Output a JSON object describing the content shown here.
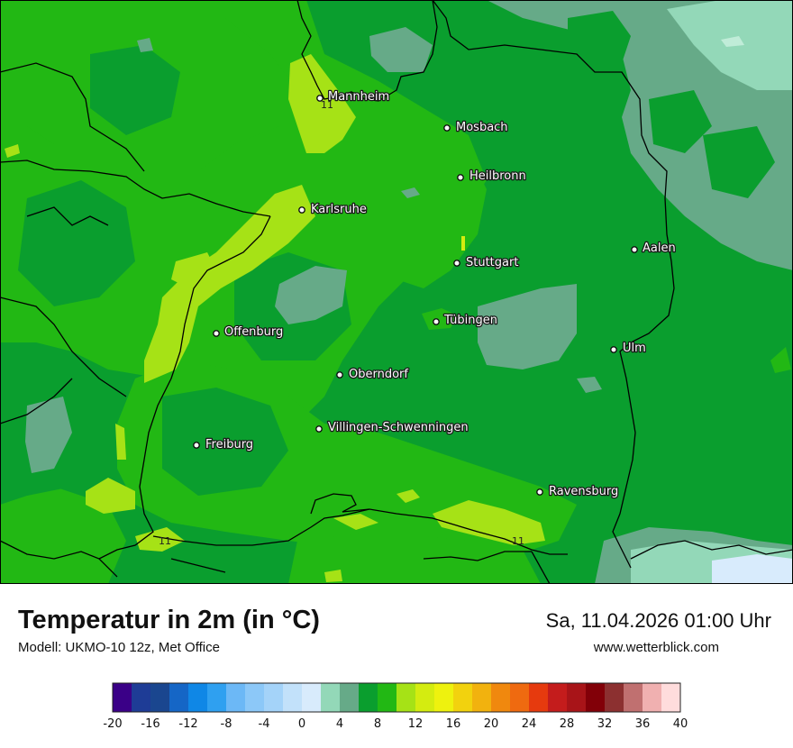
{
  "map": {
    "colors": {
      "c3": "#66aa88",
      "c4": "#93d8b8",
      "c5": "#c0ecd8",
      "c8": "#0a9e2e",
      "c10": "#22b814",
      "c12": "#a6e216",
      "c14": "#d4ec10",
      "border": "#000000"
    },
    "cities": [
      {
        "name": "Mannheim"
      },
      {
        "name": "Mosbach"
      },
      {
        "name": "Heilbronn"
      },
      {
        "name": "Karlsruhe"
      },
      {
        "name": "Aalen"
      },
      {
        "name": "Stuttgart"
      },
      {
        "name": "Tübingen"
      },
      {
        "name": "Offenburg"
      },
      {
        "name": "Ulm"
      },
      {
        "name": "Oberndorf"
      },
      {
        "name": "Villingen-Schwenningen"
      },
      {
        "name": "Freiburg"
      },
      {
        "name": "Ravensburg"
      }
    ],
    "isolines": [
      "11",
      "11",
      "11"
    ]
  },
  "footer": {
    "title": "Temperatur in 2m (in °C)",
    "model": "Modell: UKMO-10 12z, Met Office",
    "datetime": "Sa, 11.04.2026 01:00 Uhr",
    "website": "www.wetterblick.com"
  },
  "legend": {
    "colors": [
      "#3a0087",
      "#1e3c96",
      "#1a468f",
      "#1566c6",
      "#0f87e6",
      "#2fa0f0",
      "#6cb8f6",
      "#8cc8f8",
      "#a4d3f9",
      "#c2e1fa",
      "#d8ebfc",
      "#93d8b8",
      "#66aa88",
      "#0a9e2e",
      "#22b814",
      "#a6e216",
      "#d4ec10",
      "#eef20e",
      "#f2d20e",
      "#f2b20e",
      "#f0880e",
      "#ef6a10",
      "#e63a0e",
      "#c41c1c",
      "#a81418",
      "#820008",
      "#8c3030",
      "#c07070",
      "#f0b0b0",
      "#ffdcdc"
    ],
    "ticks": [
      "-20",
      "-16",
      "-12",
      "-8",
      "-4",
      "0",
      "4",
      "8",
      "12",
      "16",
      "20",
      "24",
      "28",
      "32",
      "36",
      "40"
    ]
  }
}
